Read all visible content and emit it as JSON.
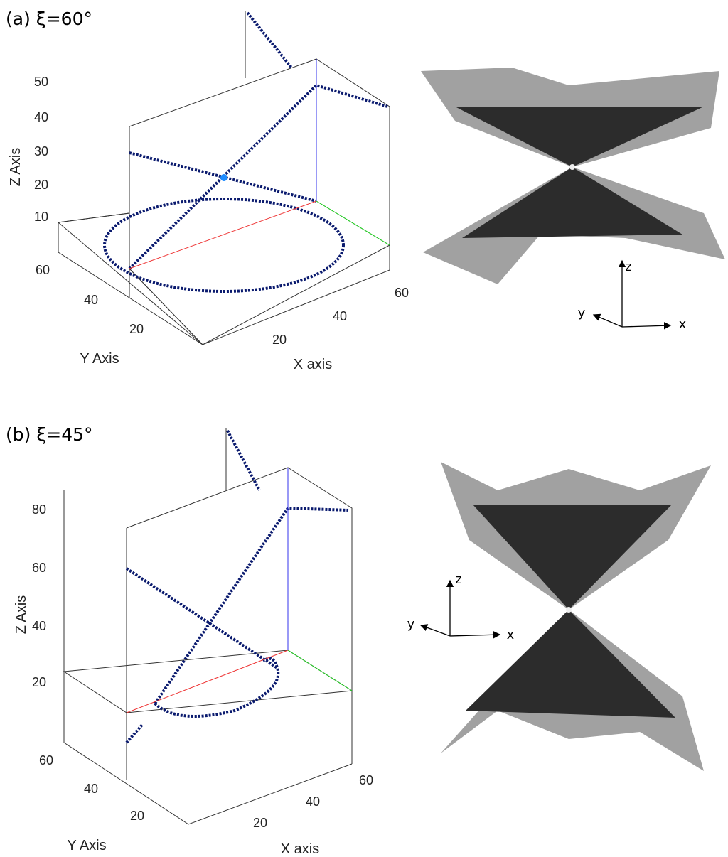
{
  "panels": [
    {
      "label": "(a) ξ=60°",
      "z_axis": {
        "title": "Z Axis",
        "ticks": [
          10,
          20,
          30,
          40,
          50
        ]
      },
      "y_axis": {
        "title": "Y Axis",
        "ticks": [
          20,
          40,
          60
        ]
      },
      "x_axis": {
        "title": "X axis",
        "ticks": [
          20,
          40,
          60
        ]
      },
      "orientation": {
        "x": "x",
        "y": "y",
        "z": "z"
      }
    },
    {
      "label": "(b) ξ=45°",
      "z_axis": {
        "title": "Z Axis",
        "ticks": [
          20,
          40,
          60,
          80
        ]
      },
      "y_axis": {
        "title": "Y Axis",
        "ticks": [
          20,
          40,
          60
        ]
      },
      "x_axis": {
        "title": "X axis",
        "ticks": [
          20,
          40,
          60
        ]
      },
      "orientation": {
        "x": "x",
        "y": "y",
        "z": "z"
      }
    }
  ]
}
